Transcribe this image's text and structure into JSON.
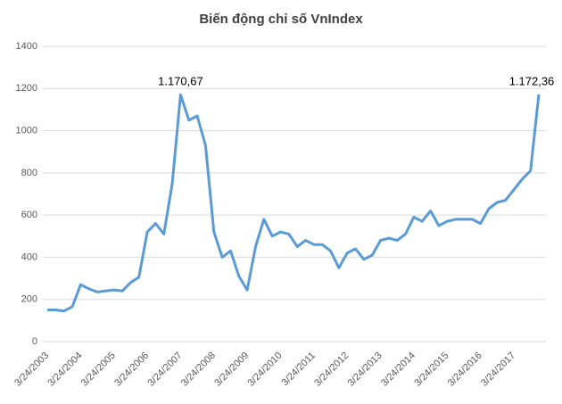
{
  "chart_data": {
    "type": "line",
    "title": "Biến động chỉ số VnIndex",
    "categories": [
      "3/24/2003",
      null,
      null,
      null,
      "3/24/2004",
      null,
      null,
      null,
      "3/24/2005",
      null,
      null,
      null,
      "3/24/2006",
      null,
      null,
      null,
      "3/24/2007",
      null,
      null,
      null,
      "3/24/2008",
      null,
      null,
      null,
      "3/24/2009",
      null,
      null,
      null,
      "3/24/2010",
      null,
      null,
      null,
      "3/24/2011",
      null,
      null,
      null,
      "3/24/2012",
      null,
      null,
      null,
      "3/24/2013",
      null,
      null,
      null,
      "3/24/2014",
      null,
      null,
      null,
      "3/24/2015",
      null,
      null,
      null,
      "3/24/2016",
      null,
      null,
      null,
      "3/24/2017",
      null,
      null,
      null
    ],
    "values": [
      150,
      150,
      145,
      165,
      270,
      250,
      235,
      240,
      245,
      240,
      280,
      305,
      520,
      560,
      510,
      750,
      1170.67,
      1050,
      1070,
      930,
      520,
      400,
      430,
      310,
      245,
      450,
      580,
      500,
      520,
      510,
      450,
      480,
      460,
      460,
      430,
      350,
      420,
      440,
      390,
      410,
      480,
      490,
      480,
      510,
      590,
      570,
      620,
      550,
      570,
      580,
      580,
      580,
      560,
      630,
      660,
      670,
      720,
      770,
      810,
      1172.36
    ],
    "value_labels": [
      null,
      null,
      null,
      null,
      null,
      null,
      null,
      null,
      null,
      null,
      null,
      null,
      null,
      null,
      null,
      null,
      "1.170,67",
      null,
      null,
      null,
      null,
      null,
      null,
      null,
      null,
      null,
      null,
      null,
      null,
      null,
      null,
      null,
      null,
      null,
      null,
      null,
      null,
      null,
      null,
      null,
      null,
      null,
      null,
      null,
      null,
      null,
      null,
      null,
      null,
      null,
      null,
      null,
      null,
      null,
      null,
      null,
      null,
      null,
      null,
      "1.172,36"
    ],
    "color": "#5b9bd5",
    "ylim": [
      0,
      1400
    ],
    "yticks": [
      0,
      200,
      400,
      600,
      800,
      1000,
      1200,
      1400
    ],
    "grid": true
  }
}
